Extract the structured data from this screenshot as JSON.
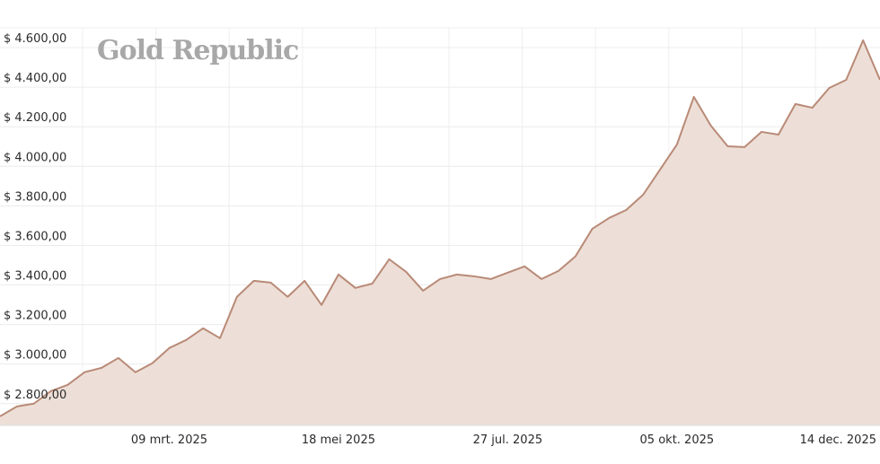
{
  "chart_data": {
    "type": "area",
    "watermark": "Gold Republic",
    "categories": [
      null,
      null,
      null,
      null,
      null,
      null,
      null,
      null,
      null,
      null,
      "09 mrt. 2025",
      null,
      null,
      null,
      null,
      null,
      null,
      null,
      null,
      null,
      "18 mei 2025",
      null,
      null,
      null,
      null,
      null,
      null,
      null,
      null,
      null,
      "27 jul. 2025",
      null,
      null,
      null,
      null,
      null,
      null,
      null,
      null,
      null,
      "05 okt. 2025",
      null,
      null,
      null,
      null,
      null,
      null,
      null,
      null,
      null,
      "14 dec. 2025",
      null,
      null
    ],
    "values": [
      2736,
      2786,
      2800,
      2863,
      2895,
      2959,
      2981,
      3031,
      2959,
      3004,
      3081,
      3122,
      3181,
      3131,
      3340,
      3421,
      3412,
      3340,
      3421,
      3299,
      3453,
      3385,
      3407,
      3530,
      3466,
      3371,
      3430,
      3453,
      3444,
      3430,
      3462,
      3494,
      3430,
      3471,
      3544,
      3684,
      3739,
      3779,
      3856,
      3983,
      4110,
      4351,
      4206,
      4101,
      4097,
      4174,
      4160,
      4315,
      4296,
      4396,
      4437,
      4637,
      4437
    ],
    "color": "#b98a77",
    "fill": "#eddfd7",
    "ylim": [
      2690,
      4700
    ],
    "yticks": [
      {
        "value": 2800,
        "label": "$ 2.800,00"
      },
      {
        "value": 3000,
        "label": "$ 3.000,00"
      },
      {
        "value": 3200,
        "label": "$ 3.200,00"
      },
      {
        "value": 3400,
        "label": "$ 3.400,00"
      },
      {
        "value": 3600,
        "label": "$ 3.600,00"
      },
      {
        "value": 3800,
        "label": "$ 3.800,00"
      },
      {
        "value": 4000,
        "label": "$ 4.000,00"
      },
      {
        "value": 4200,
        "label": "$ 4.200,00"
      },
      {
        "value": 4400,
        "label": "$ 4.400,00"
      },
      {
        "value": 4600,
        "label": "$ 4.600,00"
      }
    ],
    "grid": true
  }
}
